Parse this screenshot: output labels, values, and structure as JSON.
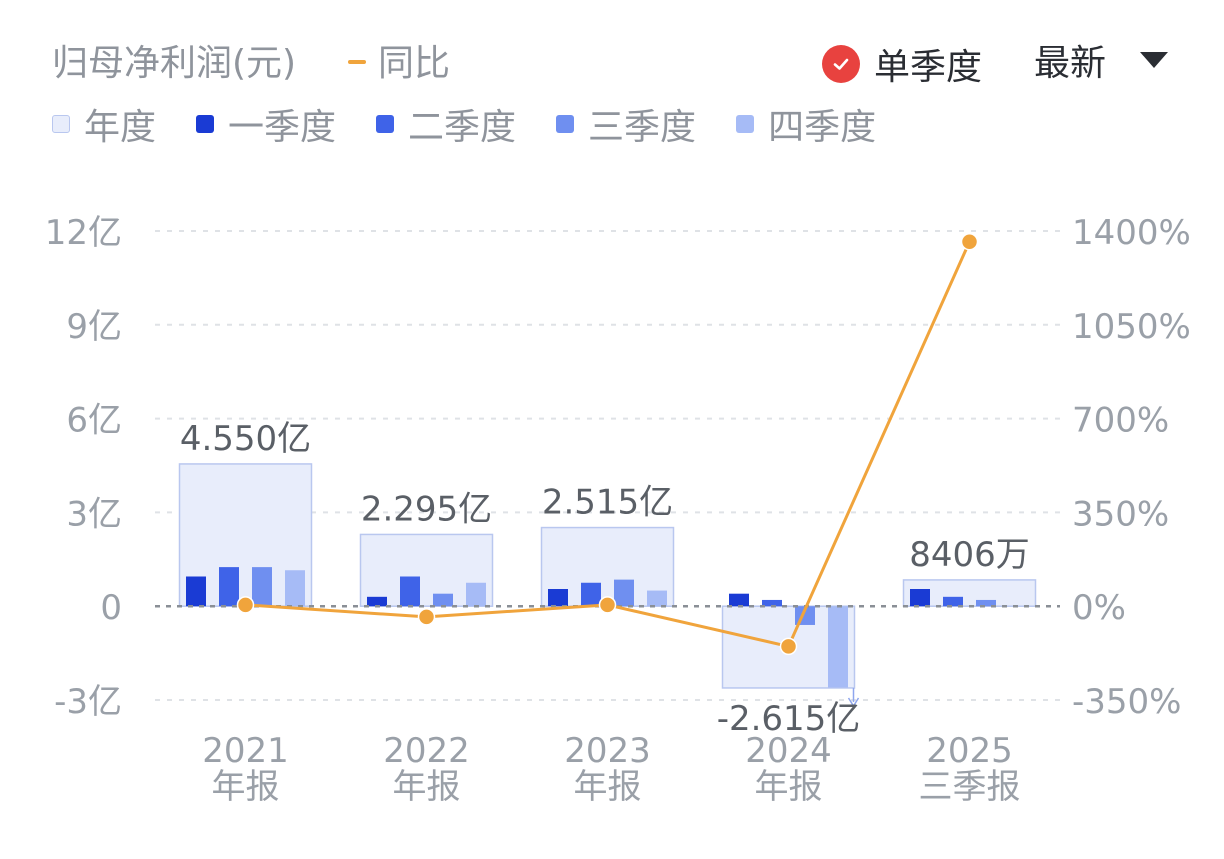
{
  "header": {
    "title": "归母净利润(元)",
    "line_legend": "同比",
    "toggle_label": "单季度",
    "select_label": "最新"
  },
  "legend": [
    {
      "label": "年度",
      "color": "#e8edfb"
    },
    {
      "label": "一季度",
      "color": "#1a3bd4"
    },
    {
      "label": "二季度",
      "color": "#3f63e8"
    },
    {
      "label": "三季度",
      "color": "#6f8ff0"
    },
    {
      "label": "四季度",
      "color": "#a6bbf6"
    }
  ],
  "colors": {
    "annual_fill": "#e8edfb",
    "annual_stroke": "#b9c7ef",
    "line": "#f0a43c",
    "axis_text": "#9aa0a8",
    "label_text": "#5a5f66"
  },
  "chart_data": {
    "type": "bar",
    "title": "归母净利润(元)",
    "categories": [
      "2021",
      "2022",
      "2023",
      "2024",
      "2025"
    ],
    "category_sublabels": [
      "年报",
      "年报",
      "年报",
      "年报",
      "三季报"
    ],
    "annual": {
      "name": "年度",
      "values": [
        4.55,
        2.295,
        2.515,
        -2.615,
        0.8406
      ],
      "labels": [
        "4.550亿",
        "2.295亿",
        "2.515亿",
        "-2.615亿",
        "8406万"
      ],
      "unit": "亿"
    },
    "series": [
      {
        "name": "一季度",
        "values": [
          0.95,
          0.3,
          0.55,
          0.4,
          0.55
        ]
      },
      {
        "name": "二季度",
        "values": [
          1.25,
          0.95,
          0.75,
          0.2,
          0.3
        ]
      },
      {
        "name": "三季度",
        "values": [
          1.25,
          0.4,
          0.85,
          -0.6,
          0.2
        ]
      },
      {
        "name": "四季度",
        "values": [
          1.15,
          0.75,
          0.5,
          -2.6,
          null
        ]
      }
    ],
    "line": {
      "name": "同比",
      "values": [
        5,
        -40,
        5,
        -150,
        1360
      ],
      "unit": "%"
    },
    "y_left": {
      "ticks": [
        "12亿",
        "9亿",
        "6亿",
        "3亿",
        "0",
        "-3亿"
      ],
      "tick_values": [
        12,
        9,
        6,
        3,
        0,
        -3
      ],
      "ylim": [
        -3,
        12
      ]
    },
    "y_right": {
      "ticks": [
        "1400%",
        "1050%",
        "700%",
        "350%",
        "0%",
        "-350%"
      ],
      "tick_values": [
        1400,
        1050,
        700,
        350,
        0,
        -350
      ],
      "ylim": [
        -350,
        1400
      ]
    },
    "grid": true
  }
}
